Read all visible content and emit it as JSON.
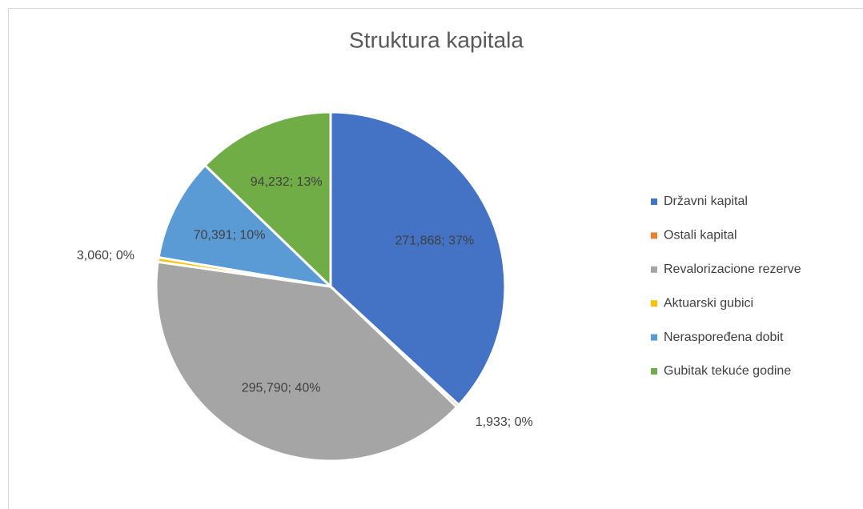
{
  "chart_data": {
    "type": "pie",
    "title": "Struktura  kapitala",
    "categories": [
      "Državni kapital",
      "Ostali kapital",
      "Revalorizacione rezerve",
      "Aktuarski gubici",
      "Neraspoređena dobit",
      "Gubitak tekuće godine"
    ],
    "values": [
      271868,
      1933,
      295790,
      3060,
      70391,
      94232
    ],
    "value_labels": [
      "271,868; 37%",
      "1,933; 0%",
      "295,790; 40%",
      "3,060; 0%",
      "70,391; 10%",
      "94,232; 13%"
    ],
    "colors": [
      "#4472c4",
      "#ed7d31",
      "#a5a5a5",
      "#ffc000",
      "#5b9bd5",
      "#70ad47"
    ],
    "legend": "right"
  }
}
